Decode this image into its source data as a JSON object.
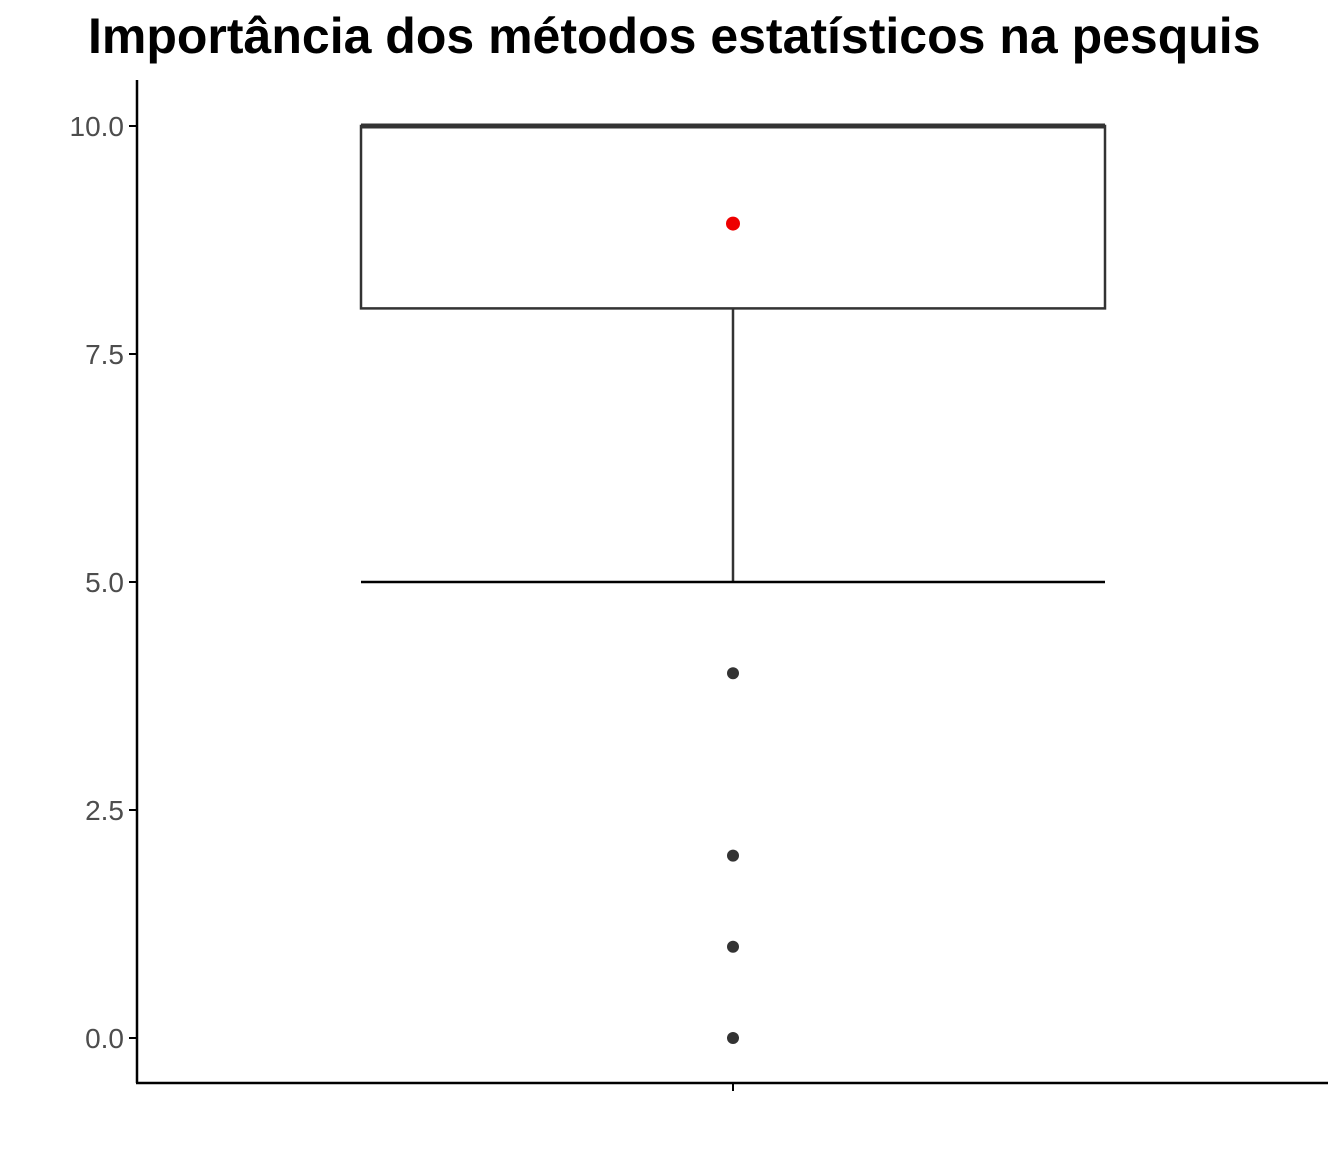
{
  "chart_data": {
    "type": "box",
    "title": "Importância dos métodos estatísticos na pesquis",
    "xlabel": "",
    "ylabel": "",
    "ylim": [
      -0.5,
      10.5
    ],
    "y_ticks": [
      0.0,
      2.5,
      5.0,
      7.5,
      10.0
    ],
    "y_tick_labels": [
      "0.0",
      "2.5",
      "5.0",
      "7.5",
      "10.0"
    ],
    "grid": false,
    "legend": "none",
    "box": {
      "whisker_low": 5.0,
      "q1": 8.0,
      "median": 10.0,
      "q3": 10.0,
      "whisker_high": 10.0,
      "mean": 8.93
    },
    "outliers": [
      4.0,
      2.0,
      1.0,
      0.0
    ],
    "colors": {
      "box_line": "#333333",
      "mean_point": "#ee0000",
      "outlier_point": "#333333",
      "axis": "#000000",
      "tick_label": "#4d4d4d"
    }
  }
}
